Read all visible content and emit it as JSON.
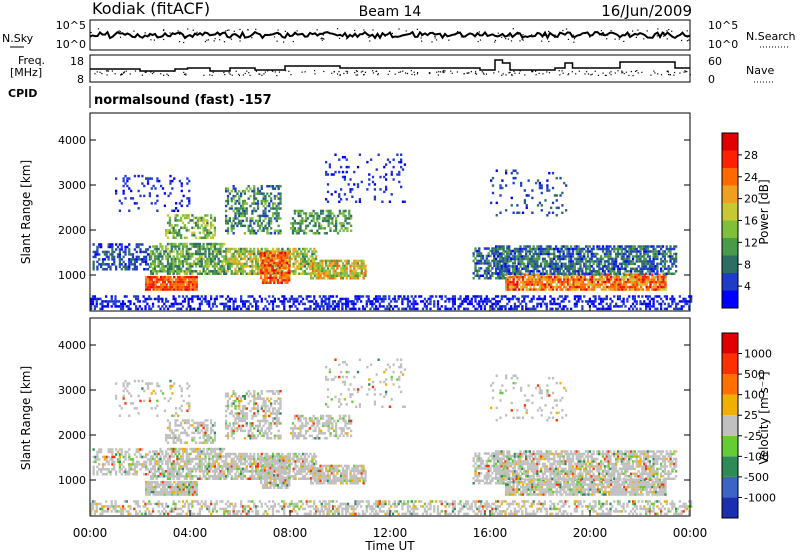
{
  "header": {
    "station": "Kodiak (fitACF)",
    "beam": "Beam 14",
    "date": "16/Jun/2009"
  },
  "nsky_panel": {
    "left_label": "N.Sky",
    "right_label": "N.Search",
    "left_ticks": [
      "10^5",
      "10^0"
    ],
    "right_ticks": [
      "10^5",
      "10^0"
    ]
  },
  "freq_panel": {
    "left_label_1": "Freq.",
    "left_label_2": "[MHz]",
    "right_label": "Nave",
    "left_ticks": [
      "18",
      "8"
    ],
    "right_ticks": [
      "60",
      "0"
    ]
  },
  "cpid": {
    "label": "CPID",
    "value": "normalsound (fast) -157"
  },
  "chart_data": [
    {
      "type": "heatmap",
      "title": "",
      "xlabel": "",
      "ylabel": "Slant Range [km]",
      "xlim": [
        "00:00",
        "24:00"
      ],
      "ylim": [
        200,
        4600
      ],
      "yticks": [
        "1000",
        "2000",
        "3000",
        "4000"
      ],
      "colorbar": {
        "label": "Power [dB]",
        "ticks": [
          "4",
          "8",
          "12",
          "16",
          "20",
          "24",
          "28"
        ],
        "colors": [
          "#0000ff",
          "#1e3cc8",
          "#2d6e64",
          "#4a9a4a",
          "#7fc03a",
          "#c8c832",
          "#f0a020",
          "#ff6a00",
          "#ff2000",
          "#e00000"
        ]
      }
    },
    {
      "type": "heatmap",
      "title": "",
      "xlabel": "Time UT",
      "ylabel": "Slant Range [km]",
      "xlim": [
        "00:00",
        "24:00"
      ],
      "ylim": [
        200,
        4600
      ],
      "yticks": [
        "1000",
        "2000",
        "3000",
        "4000"
      ],
      "xticks": [
        "00:00",
        "04:00",
        "08:00",
        "12:00",
        "16:00",
        "20:00",
        "00:00"
      ],
      "colorbar": {
        "label": "Velocity [m s⁻¹]",
        "ticks": [
          "1000",
          "500",
          "100",
          "25",
          "-25",
          "-100",
          "-500",
          "-1000"
        ],
        "colors": [
          "#1a2fb0",
          "#3c64c8",
          "#2e8b57",
          "#66cc33",
          "#c0c0c0",
          "#f0b000",
          "#ff7000",
          "#ff3000",
          "#e00000"
        ]
      }
    }
  ],
  "colors": {
    "ground_scatter": "#c0c0c0"
  }
}
